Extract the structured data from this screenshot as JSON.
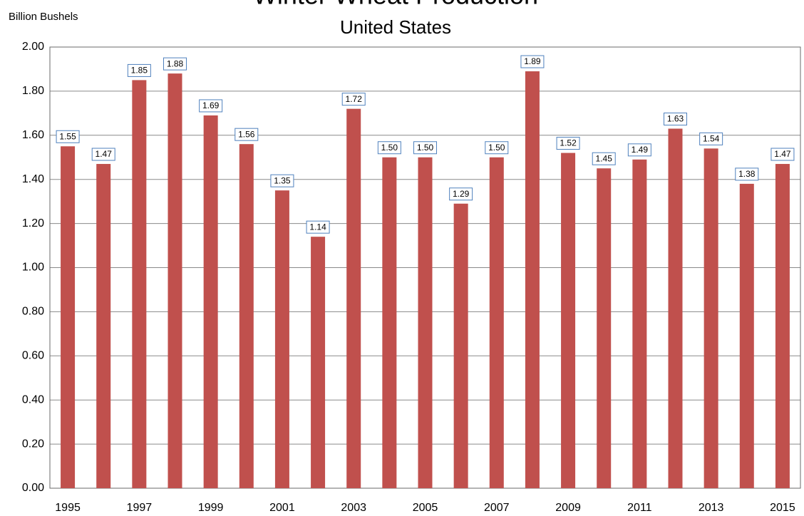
{
  "chart_data": {
    "type": "bar",
    "title": "Winter Wheat Production",
    "subtitle": "United States",
    "y_label": "Billion Bushels",
    "categories": [
      "1995",
      null,
      "1997",
      null,
      "1999",
      null,
      "2001",
      null,
      "2003",
      null,
      "2005",
      null,
      "2007",
      null,
      "2009",
      null,
      "2011",
      null,
      "2013",
      null,
      "2015"
    ],
    "values": [
      1.55,
      1.47,
      1.85,
      1.88,
      1.69,
      1.56,
      1.35,
      1.14,
      1.72,
      1.5,
      1.5,
      1.29,
      1.5,
      1.89,
      1.52,
      1.45,
      1.49,
      1.63,
      1.54,
      1.38,
      1.47
    ],
    "value_labels": [
      "1.55",
      "1.47",
      "1.85",
      "1.88",
      "1.69",
      "1.56",
      "1.35",
      "1.14",
      "1.72",
      "1.50",
      "1.50",
      "1.29",
      "1.50",
      "1.89",
      "1.52",
      "1.45",
      "1.49",
      "1.63",
      "1.54",
      "1.38",
      "1.47"
    ],
    "color": "#c0504d",
    "ylim": [
      0,
      2
    ],
    "yticks": [
      {
        "value": 0,
        "label": "0.00"
      },
      {
        "value": 0.2,
        "label": "0.20"
      },
      {
        "value": 0.4,
        "label": "0.40"
      },
      {
        "value": 0.6,
        "label": "0.60"
      },
      {
        "value": 0.8,
        "label": "0.80"
      },
      {
        "value": 1,
        "label": "1.00"
      },
      {
        "value": 1.2,
        "label": "1.20"
      },
      {
        "value": 1.4,
        "label": "1.40"
      },
      {
        "value": 1.6,
        "label": "1.60"
      },
      {
        "value": 1.8,
        "label": "1.80"
      },
      {
        "value": 2,
        "label": "2.00"
      }
    ],
    "grid": true
  }
}
